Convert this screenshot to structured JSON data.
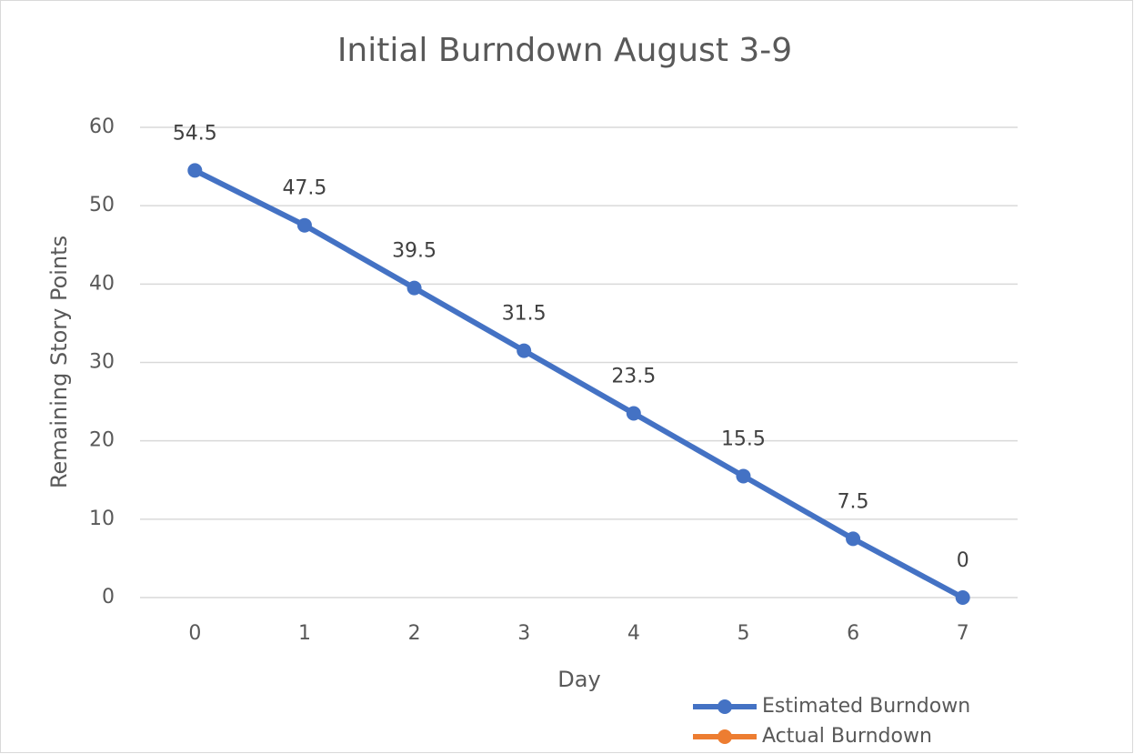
{
  "chart_data": {
    "type": "line",
    "title": "Initial Burndown August 3-9",
    "x_label": "Day",
    "y_label": "Remaining Story Points",
    "categories": [
      0,
      1,
      2,
      3,
      4,
      5,
      6,
      7
    ],
    "series": [
      {
        "name": "Estimated Burndown",
        "color": "#4472c4",
        "values": [
          54.5,
          47.5,
          39.5,
          31.5,
          23.5,
          15.5,
          7.5,
          0
        ]
      },
      {
        "name": "Actual Burndown",
        "color": "#ed7d31",
        "values": [
          null,
          null,
          null,
          null,
          null,
          null,
          null,
          null
        ]
      }
    ],
    "ylim": [
      0,
      60
    ],
    "yticks": [
      0,
      10,
      20,
      30,
      40,
      50,
      60
    ],
    "grid": true,
    "legend": "bottom-right",
    "data_labels": true
  }
}
